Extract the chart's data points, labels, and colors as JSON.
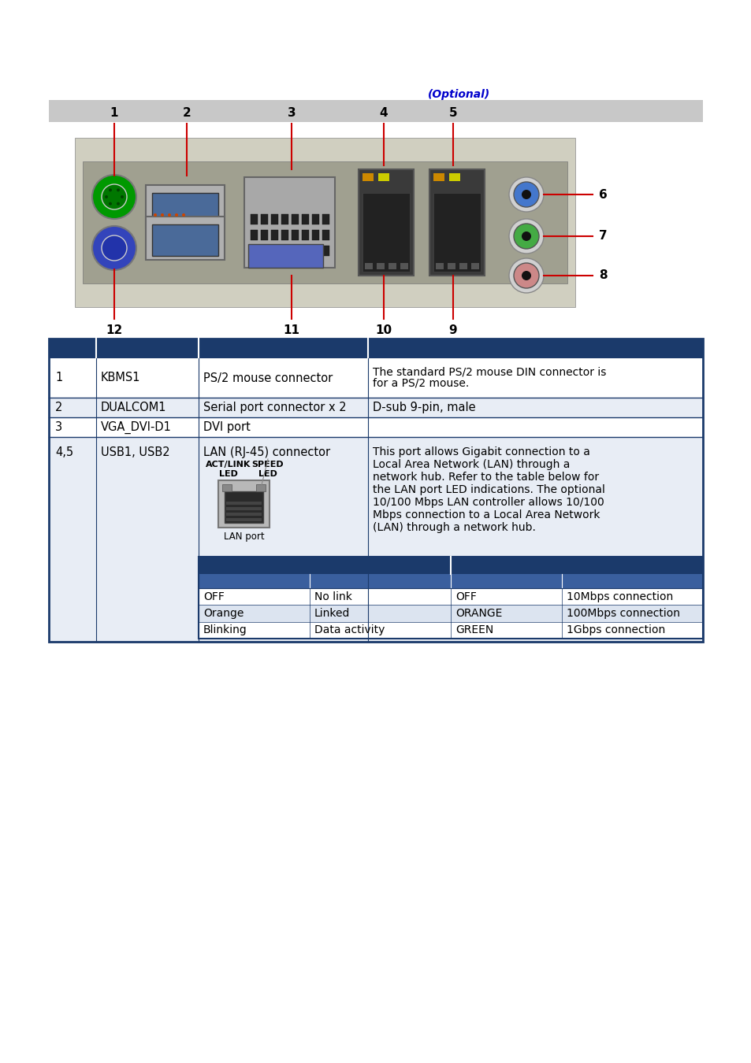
{
  "page_bg": "#ffffff",
  "header_bar_color": "#c8c8c8",
  "table_header_color": "#1b3a6b",
  "table_row_white": "#ffffff",
  "table_row_alt": "#e8edf5",
  "table_border_color": "#1b3a6b",
  "inner_hdr1_color": "#1b3a6b",
  "inner_hdr2_color": "#3a5f9e",
  "inner_row_white": "#ffffff",
  "inner_row_alt": "#dce4f0",
  "optional_color": "#0000cc",
  "red_color": "#cc0000",
  "black": "#000000",
  "white": "#ffffff",
  "optional_text": "(Optional)",
  "inner_table_rows": [
    [
      "OFF",
      "No link",
      "OFF",
      "10Mbps connection"
    ],
    [
      "Orange",
      "Linked",
      "ORANGE",
      "100Mbps connection"
    ],
    [
      "Blinking",
      "Data activity",
      "GREEN",
      "1Gbps connection"
    ]
  ]
}
